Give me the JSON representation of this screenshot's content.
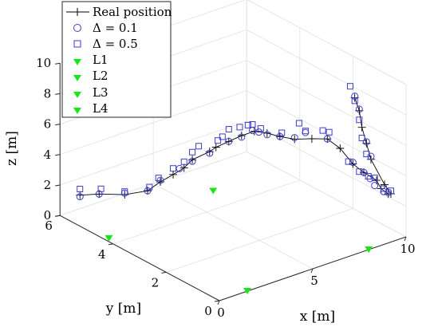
{
  "chart_data": {
    "type": "scatter3d",
    "view": "3d-perspective",
    "grid": true,
    "xlabel": "x [m]",
    "ylabel": "y [m]",
    "zlabel": "z [m]",
    "xlim": [
      0,
      10
    ],
    "ylim": [
      0,
      6
    ],
    "zlim": [
      0,
      10
    ],
    "xticks": [
      "0",
      "5",
      "10"
    ],
    "yticks": [
      "0",
      "2",
      "4",
      "6"
    ],
    "zticks": [
      "0",
      "2",
      "4",
      "6",
      "8",
      "10"
    ],
    "legend": {
      "placement": "top-left",
      "entries": [
        {
          "label": "Real position",
          "marker": "plus-line"
        },
        {
          "label": "Δ = 0.1",
          "marker": "circle"
        },
        {
          "label": "Δ = 0.5",
          "marker": "square"
        },
        {
          "label": "L1",
          "marker": "triangle-down"
        },
        {
          "label": "L2",
          "marker": "triangle-down"
        },
        {
          "label": "L3",
          "marker": "triangle-down"
        },
        {
          "label": "L4",
          "marker": "triangle-down"
        }
      ]
    },
    "colors": {
      "real": "#000000",
      "estimate": "#3d3dcc",
      "landmark": "#19e619",
      "grid": "#e6e6e6",
      "axis": "#262626"
    },
    "series": [
      {
        "name": "Real position",
        "points": [
          [
            0.5,
            5.6,
            1.5
          ],
          [
            1.1,
            5.3,
            1.6
          ],
          [
            1.9,
            4.9,
            1.6
          ],
          [
            2.7,
            4.6,
            1.8
          ],
          [
            3.1,
            4.4,
            2.4
          ],
          [
            3.5,
            4.2,
            2.9
          ],
          [
            3.8,
            4.0,
            3.4
          ],
          [
            4.1,
            3.9,
            3.9
          ],
          [
            4.6,
            3.6,
            4.5
          ],
          [
            4.8,
            3.5,
            4.8
          ],
          [
            5.2,
            3.3,
            5.2
          ],
          [
            5.6,
            3.1,
            5.6
          ],
          [
            6.0,
            2.9,
            5.9
          ],
          [
            6.4,
            2.7,
            5.8
          ],
          [
            6.8,
            2.5,
            5.6
          ],
          [
            7.3,
            2.3,
            5.4
          ],
          [
            7.8,
            2.0,
            5.5
          ],
          [
            8.2,
            1.7,
            5.6
          ],
          [
            8.6,
            1.5,
            5.0
          ],
          [
            9.0,
            1.3,
            4.0
          ],
          [
            9.3,
            1.1,
            3.5
          ],
          [
            9.7,
            0.9,
            3.0
          ],
          [
            9.8,
            0.8,
            2.5
          ],
          [
            9.9,
            0.6,
            2.3
          ],
          [
            9.9,
            0.5,
            2.4
          ],
          [
            9.7,
            0.6,
            3.0
          ],
          [
            9.4,
            0.9,
            4.5
          ],
          [
            9.3,
            1.0,
            5.5
          ],
          [
            9.2,
            1.1,
            6.5
          ],
          [
            9.2,
            1.2,
            7.5
          ],
          [
            9.1,
            1.3,
            8.3
          ]
        ]
      },
      {
        "name": "Δ = 0.1",
        "points": [
          [
            0.5,
            5.6,
            1.4
          ],
          [
            1.1,
            5.3,
            1.6
          ],
          [
            1.9,
            4.9,
            1.7
          ],
          [
            2.7,
            4.6,
            1.8
          ],
          [
            3.1,
            4.4,
            2.5
          ],
          [
            3.7,
            4.1,
            3.3
          ],
          [
            4.1,
            3.9,
            3.8
          ],
          [
            4.6,
            3.6,
            4.4
          ],
          [
            5.2,
            3.3,
            5.2
          ],
          [
            5.6,
            3.1,
            5.5
          ],
          [
            5.9,
            2.9,
            6.0
          ],
          [
            6.1,
            2.8,
            5.9
          ],
          [
            6.4,
            2.7,
            5.7
          ],
          [
            6.8,
            2.5,
            5.6
          ],
          [
            7.3,
            2.3,
            5.5
          ],
          [
            7.6,
            2.1,
            5.9
          ],
          [
            8.2,
            1.7,
            5.6
          ],
          [
            9.0,
            1.3,
            4.1
          ],
          [
            9.3,
            1.1,
            3.5
          ],
          [
            9.5,
            1.0,
            3.1
          ],
          [
            9.6,
            0.9,
            2.7
          ],
          [
            9.8,
            0.7,
            2.4
          ],
          [
            9.9,
            0.6,
            2.4
          ],
          [
            9.4,
            0.9,
            4.7
          ],
          [
            9.3,
            1.0,
            5.6
          ],
          [
            9.2,
            1.2,
            7.6
          ],
          [
            9.1,
            1.3,
            8.4
          ]
        ]
      },
      {
        "name": "Δ = 0.5",
        "points": [
          [
            0.5,
            5.6,
            1.9
          ],
          [
            1.2,
            5.3,
            1.9
          ],
          [
            1.9,
            4.9,
            1.8
          ],
          [
            2.8,
            4.6,
            2.0
          ],
          [
            3.0,
            4.4,
            2.7
          ],
          [
            3.5,
            4.2,
            3.3
          ],
          [
            3.8,
            4.0,
            3.8
          ],
          [
            4.1,
            3.9,
            4.4
          ],
          [
            4.3,
            3.8,
            4.8
          ],
          [
            4.9,
            3.5,
            5.2
          ],
          [
            5.0,
            3.4,
            5.5
          ],
          [
            5.2,
            3.3,
            6.0
          ],
          [
            5.5,
            3.1,
            6.2
          ],
          [
            5.8,
            3.0,
            6.3
          ],
          [
            5.9,
            2.9,
            6.4
          ],
          [
            6.2,
            2.8,
            6.1
          ],
          [
            6.9,
            2.5,
            5.8
          ],
          [
            7.4,
            2.2,
            6.5
          ],
          [
            7.6,
            2.1,
            6.0
          ],
          [
            8.1,
            1.8,
            6.1
          ],
          [
            8.3,
            1.7,
            6.0
          ],
          [
            8.9,
            1.4,
            4.1
          ],
          [
            9.2,
            1.2,
            3.5
          ],
          [
            9.4,
            1.0,
            3.3
          ],
          [
            9.6,
            0.9,
            3.2
          ],
          [
            9.8,
            0.7,
            2.6
          ],
          [
            9.9,
            0.5,
            2.6
          ],
          [
            9.3,
            1.0,
            4.8
          ],
          [
            9.2,
            1.1,
            5.8
          ],
          [
            9.2,
            1.2,
            6.9
          ],
          [
            9.1,
            1.3,
            8.1
          ],
          [
            9.0,
            1.4,
            9.0
          ]
        ]
      }
    ],
    "landmarks": [
      {
        "name": "L1",
        "position": [
          0.2,
          4.3,
          0
        ]
      },
      {
        "name": "L2",
        "position": [
          1.5,
          0.0,
          0
        ]
      },
      {
        "name": "L3",
        "position": [
          6.5,
          4.8,
          0
        ]
      },
      {
        "name": "L4",
        "position": [
          8.0,
          0.0,
          0
        ]
      }
    ]
  }
}
